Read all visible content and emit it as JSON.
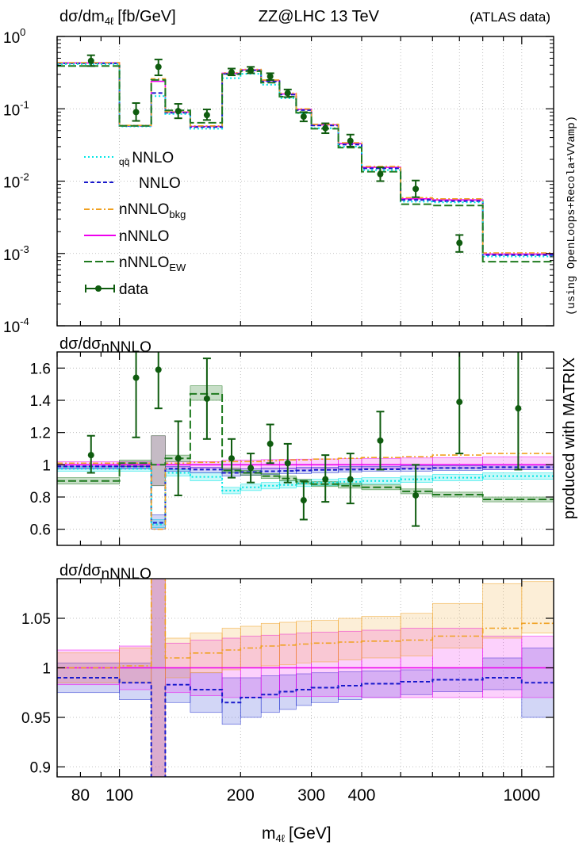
{
  "chart_data": {
    "type": "line",
    "title": "ZZ@LHC 13 TeV",
    "title_note": "(ATLAS data)",
    "side_label": "produced with MATRIX",
    "side_note": "(using OpenLoops+Recola+VVamp)",
    "xlabel": "[GeV]",
    "x_scale": "log",
    "xlim": [
      70,
      1200
    ],
    "x_ticks": [
      "80",
      "100",
      "200",
      "300",
      "400",
      "1000"
    ],
    "bin_edges": [
      70,
      100,
      120,
      130,
      150,
      180,
      200,
      225,
      250,
      275,
      300,
      350,
      400,
      500,
      600,
      800,
      1200
    ],
    "legend": {
      "placement": "left",
      "entries": [
        {
          "prefix": "q",
          "prefix_bar": "q̄",
          "main": "NNLO"
        },
        {
          "main": "NNLO"
        },
        {
          "main": "nNNLO",
          "sub": "bkg"
        },
        {
          "main": "nNNLO"
        },
        {
          "main": "nNNLO",
          "sub": "EW"
        },
        {
          "main": "data"
        }
      ]
    },
    "colors": {
      "qqNNLO": "#00e5e5",
      "NNLO": "#1a1acc",
      "nNNLO_bkg": "#f0a020",
      "nNNLO": "#ee00ee",
      "nNNLO_EW": "#1f7a1f",
      "data": "#0f5c0f"
    },
    "panels": [
      {
        "id": "main",
        "ylabel_main": "dσ/dm",
        "ylabel_sub": "4ℓ",
        "ylabel_unit": "[fb/GeV]",
        "y_scale": "log",
        "ylim": [
          0.0001,
          1
        ],
        "y_ticks": [
          {
            "base": "10",
            "exp": "0"
          },
          {
            "base": "10",
            "exp": "-1"
          },
          {
            "base": "10",
            "exp": "-2"
          },
          {
            "base": "10",
            "exp": "-3"
          },
          {
            "base": "10",
            "exp": "-4"
          }
        ],
        "series": [
          {
            "name": "nNNLO",
            "values": [
              0.43,
              0.058,
              0.24,
              0.09,
              0.057,
              0.31,
              0.345,
              0.245,
              0.16,
              0.098,
              0.06,
              0.033,
              0.0155,
              0.0057,
              0.0055,
              0.00098
            ]
          },
          {
            "name": "NNLO",
            "values": [
              0.425,
              0.058,
              0.165,
              0.088,
              0.056,
              0.305,
              0.34,
              0.24,
              0.157,
              0.096,
              0.059,
              0.032,
              0.015,
              0.0055,
              0.0053,
              0.00095
            ]
          },
          {
            "name": "qqNNLO",
            "values": [
              0.415,
              0.057,
              0.15,
              0.085,
              0.053,
              0.265,
              0.305,
              0.215,
              0.14,
              0.087,
              0.054,
              0.03,
              0.0142,
              0.0052,
              0.0051,
              0.00091
            ]
          },
          {
            "name": "nNNLO_bkg",
            "values": [
              0.435,
              0.059,
              0.26,
              0.091,
              0.058,
              0.315,
              0.35,
              0.25,
              0.164,
              0.1,
              0.061,
              0.034,
              0.016,
              0.0059,
              0.0057,
              0.00102
            ]
          },
          {
            "name": "nNNLO_EW",
            "values": [
              0.39,
              0.058,
              0.25,
              0.095,
              0.064,
              0.3,
              0.33,
              0.23,
              0.147,
              0.088,
              0.053,
              0.029,
              0.0135,
              0.0048,
              0.0046,
              0.00077
            ]
          }
        ],
        "data_points": [
          {
            "x": 85,
            "y": 0.46,
            "lo": 0.39,
            "hi": 0.55,
            "xlo": 70,
            "xhi": 100
          },
          {
            "x": 110,
            "y": 0.09,
            "lo": 0.068,
            "hi": 0.12
          },
          {
            "x": 125,
            "y": 0.38,
            "lo": 0.29,
            "hi": 0.48
          },
          {
            "x": 140,
            "y": 0.093,
            "lo": 0.074,
            "hi": 0.117
          },
          {
            "x": 165,
            "y": 0.082,
            "lo": 0.07,
            "hi": 0.098
          },
          {
            "x": 190,
            "y": 0.32,
            "lo": 0.29,
            "hi": 0.36
          },
          {
            "x": 212,
            "y": 0.34,
            "lo": 0.31,
            "hi": 0.38
          },
          {
            "x": 237,
            "y": 0.28,
            "lo": 0.25,
            "hi": 0.31
          },
          {
            "x": 262,
            "y": 0.165,
            "lo": 0.145,
            "hi": 0.185
          },
          {
            "x": 287,
            "y": 0.078,
            "lo": 0.067,
            "hi": 0.09
          },
          {
            "x": 325,
            "y": 0.054,
            "lo": 0.046,
            "hi": 0.063
          },
          {
            "x": 375,
            "y": 0.036,
            "lo": 0.03,
            "hi": 0.044
          },
          {
            "x": 445,
            "y": 0.0125,
            "lo": 0.01,
            "hi": 0.0155
          },
          {
            "x": 545,
            "y": 0.0078,
            "lo": 0.006,
            "hi": 0.0102
          },
          {
            "x": 700,
            "y": 0.0014,
            "lo": 0.00105,
            "hi": 0.0018
          }
        ]
      },
      {
        "id": "ratio1",
        "ylabel_main": "dσ/dσ",
        "ylabel_sub": "nNNLO",
        "y_scale": "linear",
        "ylim": [
          0.5,
          1.7
        ],
        "y_ticks": [
          "1.6",
          "1.4",
          "1.2",
          "1",
          "0.8",
          "0.6"
        ],
        "bands": [
          {
            "name": "nNNLO",
            "lo": [
              0.98,
              0.98,
              0.87,
              0.98,
              0.98,
              0.972,
              0.973,
              0.973,
              0.975,
              0.976,
              0.977,
              0.978,
              0.979,
              0.98,
              0.98,
              0.97
            ],
            "hi": [
              1.02,
              1.02,
              1.18,
              1.02,
              1.02,
              1.03,
              1.03,
              1.032,
              1.034,
              1.035,
              1.036,
              1.038,
              1.04,
              1.042,
              1.045,
              1.05
            ]
          },
          {
            "name": "qqNNLO",
            "lo": [
              0.96,
              0.96,
              0.61,
              0.93,
              0.9,
              0.82,
              0.84,
              0.85,
              0.855,
              0.865,
              0.87,
              0.875,
              0.88,
              0.89,
              0.9,
              0.91
            ],
            "hi": [
              0.99,
              0.99,
              0.66,
              0.97,
              0.95,
              0.86,
              0.88,
              0.89,
              0.9,
              0.905,
              0.91,
              0.915,
              0.92,
              0.93,
              0.94,
              0.95
            ]
          },
          {
            "name": "NNLO",
            "lo": [
              0.975,
              0.975,
              0.6,
              0.96,
              0.95,
              0.93,
              0.935,
              0.94,
              0.945,
              0.945,
              0.95,
              0.955,
              0.96,
              0.96,
              0.965,
              0.97
            ],
            "hi": [
              1.0,
              1.0,
              0.69,
              0.99,
              0.985,
              0.97,
              0.975,
              0.98,
              0.98,
              0.985,
              0.985,
              0.99,
              0.99,
              0.995,
              0.995,
              1.0
            ]
          },
          {
            "name": "nNNLO_EW",
            "lo": [
              0.88,
              0.99,
              0.87,
              1.02,
              1.4,
              0.95,
              0.935,
              0.915,
              0.9,
              0.88,
              0.865,
              0.855,
              0.845,
              0.82,
              0.8,
              0.77
            ],
            "hi": [
              0.92,
              1.03,
              1.18,
              1.06,
              1.49,
              0.98,
              0.965,
              0.945,
              0.93,
              0.91,
              0.895,
              0.885,
              0.875,
              0.85,
              0.83,
              0.8
            ]
          }
        ],
        "series": [
          {
            "name": "nNNLO",
            "values": [
              1.0,
              1.0,
              1.0,
              1.0,
              1.0,
              1.0,
              1.0,
              1.0,
              1.0,
              1.0,
              1.0,
              1.0,
              1.0,
              1.0,
              1.0,
              1.0
            ]
          },
          {
            "name": "NNLO",
            "values": [
              0.99,
              0.99,
              0.64,
              0.975,
              0.97,
              0.95,
              0.955,
              0.96,
              0.962,
              0.965,
              0.968,
              0.97,
              0.972,
              0.975,
              0.98,
              0.985
            ]
          },
          {
            "name": "qqNNLO",
            "values": [
              0.975,
              0.975,
              0.63,
              0.95,
              0.925,
              0.84,
              0.86,
              0.87,
              0.875,
              0.885,
              0.89,
              0.895,
              0.9,
              0.91,
              0.92,
              0.93
            ]
          },
          {
            "name": "nNNLO_bkg",
            "values": [
              1.01,
              1.01,
              0.6,
              1.01,
              1.015,
              1.02,
              1.02,
              1.025,
              1.03,
              1.03,
              1.035,
              1.04,
              1.045,
              1.05,
              1.06,
              1.07
            ]
          },
          {
            "name": "nNNLO_EW",
            "values": [
              0.9,
              1.01,
              1.0,
              1.04,
              1.44,
              0.965,
              0.95,
              0.93,
              0.915,
              0.895,
              0.88,
              0.87,
              0.86,
              0.835,
              0.815,
              0.785
            ]
          }
        ],
        "data_points": [
          {
            "x": 85,
            "y": 1.06,
            "lo": 0.95,
            "hi": 1.18,
            "xlo": 70,
            "xhi": 100
          },
          {
            "x": 110,
            "y": 1.54,
            "lo": 1.17,
            "hi": 1.91
          },
          {
            "x": 125,
            "y": 1.59,
            "lo": 1.35,
            "hi": 1.83
          },
          {
            "x": 140,
            "y": 1.04,
            "lo": 0.81,
            "hi": 1.27
          },
          {
            "x": 165,
            "y": 1.41,
            "lo": 1.16,
            "hi": 1.66
          },
          {
            "x": 190,
            "y": 1.04,
            "lo": 0.92,
            "hi": 1.16
          },
          {
            "x": 212,
            "y": 0.98,
            "lo": 0.89,
            "hi": 1.07
          },
          {
            "x": 237,
            "y": 1.13,
            "lo": 1.01,
            "hi": 1.25
          },
          {
            "x": 262,
            "y": 1.01,
            "lo": 0.89,
            "hi": 1.13
          },
          {
            "x": 287,
            "y": 0.78,
            "lo": 0.66,
            "hi": 0.9
          },
          {
            "x": 325,
            "y": 0.91,
            "lo": 0.77,
            "hi": 1.06
          },
          {
            "x": 375,
            "y": 0.91,
            "lo": 0.76,
            "hi": 1.07
          },
          {
            "x": 445,
            "y": 1.15,
            "lo": 0.97,
            "hi": 1.33
          },
          {
            "x": 545,
            "y": 0.81,
            "lo": 0.62,
            "hi": 1.0
          },
          {
            "x": 700,
            "y": 1.39,
            "lo": 1.07,
            "hi": 1.71
          },
          {
            "x": 980,
            "y": 1.35,
            "lo": 0.97,
            "hi": 1.73
          }
        ]
      },
      {
        "id": "ratio2",
        "ylabel_main": "dσ/dσ",
        "ylabel_sub": "nNNLO",
        "y_scale": "linear",
        "ylim": [
          0.89,
          1.09
        ],
        "y_ticks": [
          "1.05",
          "1",
          "0.95",
          "0.9"
        ],
        "bands": [
          {
            "name": "NNLO",
            "lo": [
              0.975,
              0.968,
              0.84,
              0.965,
              0.955,
              0.943,
              0.95,
              0.955,
              0.958,
              0.962,
              0.965,
              0.968,
              0.97,
              0.973,
              0.976,
              0.978,
              0.95
            ],
            "hi": [
              1.005,
              1.005,
              1.12,
              1.0,
              0.995,
              0.99,
              0.99,
              0.992,
              0.993,
              0.994,
              0.995,
              0.996,
              0.997,
              0.998,
              1.0,
              1.01,
              1.02
            ]
          },
          {
            "name": "nNNLO",
            "lo": [
              0.983,
              0.978,
              0.84,
              0.975,
              0.972,
              0.97,
              0.97,
              0.97,
              0.971,
              0.971,
              0.971,
              0.971,
              0.97,
              0.97,
              0.97,
              0.97,
              0.97
            ],
            "hi": [
              1.018,
              1.022,
              1.12,
              1.025,
              1.028,
              1.03,
              1.032,
              1.033,
              1.034,
              1.035,
              1.036,
              1.037,
              1.038,
              1.04,
              1.04,
              1.032,
              1.032
            ]
          },
          {
            "name": "nNNLO_bkg",
            "lo": [
              0.985,
              0.985,
              0.84,
              0.99,
              0.995,
              0.998,
              1.0,
              1.002,
              1.003,
              1.005,
              1.006,
              1.008,
              1.01,
              1.012,
              1.02,
              1.03,
              1.035
            ],
            "hi": [
              1.015,
              1.02,
              1.12,
              1.03,
              1.035,
              1.04,
              1.042,
              1.045,
              1.046,
              1.047,
              1.048,
              1.05,
              1.052,
              1.055,
              1.065,
              1.085,
              1.087
            ]
          }
        ],
        "series": [
          {
            "name": "nNNLO",
            "values": [
              1.0,
              1.0,
              1.0,
              1.0,
              1.0,
              1.0,
              1.0,
              1.0,
              1.0,
              1.0,
              1.0,
              1.0,
              1.0,
              1.0,
              1.0,
              1.0,
              1.0
            ]
          },
          {
            "name": "NNLO",
            "values": [
              0.99,
              0.985,
              0.84,
              0.983,
              0.978,
              0.965,
              0.97,
              0.973,
              0.976,
              0.978,
              0.98,
              0.982,
              0.984,
              0.986,
              0.988,
              0.99,
              0.985
            ]
          },
          {
            "name": "nNNLO_bkg",
            "values": [
              1.0,
              1.002,
              1.12,
              1.01,
              1.015,
              1.018,
              1.02,
              1.022,
              1.023,
              1.024,
              1.025,
              1.026,
              1.027,
              1.028,
              1.032,
              1.04,
              1.045
            ]
          }
        ]
      }
    ]
  }
}
